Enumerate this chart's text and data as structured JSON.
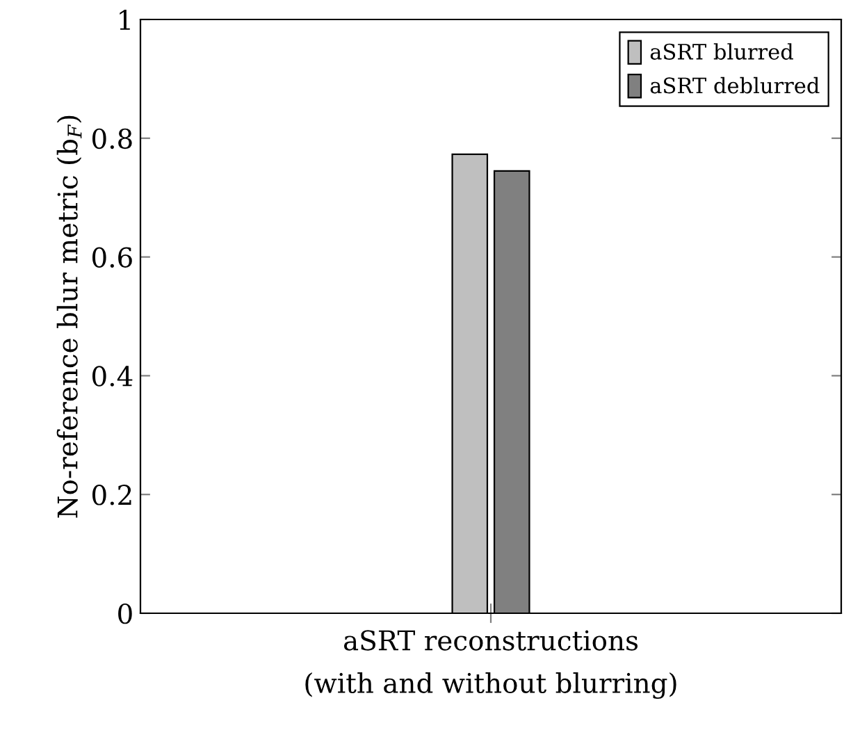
{
  "chart_data": {
    "type": "bar",
    "ylabel": "No-reference blur metric (b$_{F}$)",
    "categories": [
      "aSRT reconstructions\n(with and without blurring)"
    ],
    "series": [
      {
        "name": "aSRT blurred",
        "color": "#bfbfbf",
        "values": [
          0.773
        ]
      },
      {
        "name": "aSRT deblurred",
        "color": "#808080",
        "values": [
          0.745
        ]
      }
    ],
    "ylim": [
      0,
      1
    ],
    "yticks": [
      0,
      0.2,
      0.4,
      0.6,
      0.8,
      1
    ],
    "grid": false,
    "legend": "top right"
  }
}
